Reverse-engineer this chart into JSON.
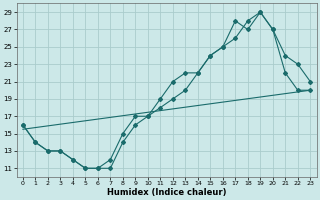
{
  "title": "",
  "xlabel": "Humidex (Indice chaleur)",
  "ylabel": "",
  "background_color": "#cce8e8",
  "grid_color": "#aacccc",
  "line_color": "#1a6b6b",
  "xlim": [
    -0.5,
    23.5
  ],
  "ylim": [
    10.0,
    30.0
  ],
  "xticks": [
    0,
    1,
    2,
    3,
    4,
    5,
    6,
    7,
    8,
    9,
    10,
    11,
    12,
    13,
    14,
    15,
    16,
    17,
    18,
    19,
    20,
    21,
    22,
    23
  ],
  "yticks": [
    11,
    13,
    15,
    17,
    19,
    21,
    23,
    25,
    27,
    29
  ],
  "series1_x": [
    0,
    1,
    2,
    3,
    4,
    5,
    6,
    7,
    8,
    9,
    10,
    11,
    12,
    13,
    14,
    15,
    16,
    17,
    18,
    19,
    20,
    21,
    22,
    23
  ],
  "series1_y": [
    16,
    14,
    13,
    13,
    12,
    11,
    11,
    11,
    14,
    16,
    17,
    18,
    19,
    20,
    22,
    24,
    25,
    26,
    28,
    29,
    27,
    24,
    23,
    21
  ],
  "series2_x": [
    0,
    1,
    2,
    3,
    4,
    5,
    6,
    7,
    8,
    9,
    10,
    11,
    12,
    13,
    14,
    15,
    16,
    17,
    18,
    19,
    20,
    21,
    22,
    23
  ],
  "series2_y": [
    16,
    14,
    13,
    13,
    12,
    11,
    11,
    12,
    15,
    17,
    17,
    19,
    21,
    22,
    22,
    24,
    25,
    28,
    27,
    29,
    27,
    22,
    20,
    20
  ],
  "series3_x": [
    0,
    23
  ],
  "series3_y": [
    15.5,
    20.0
  ]
}
